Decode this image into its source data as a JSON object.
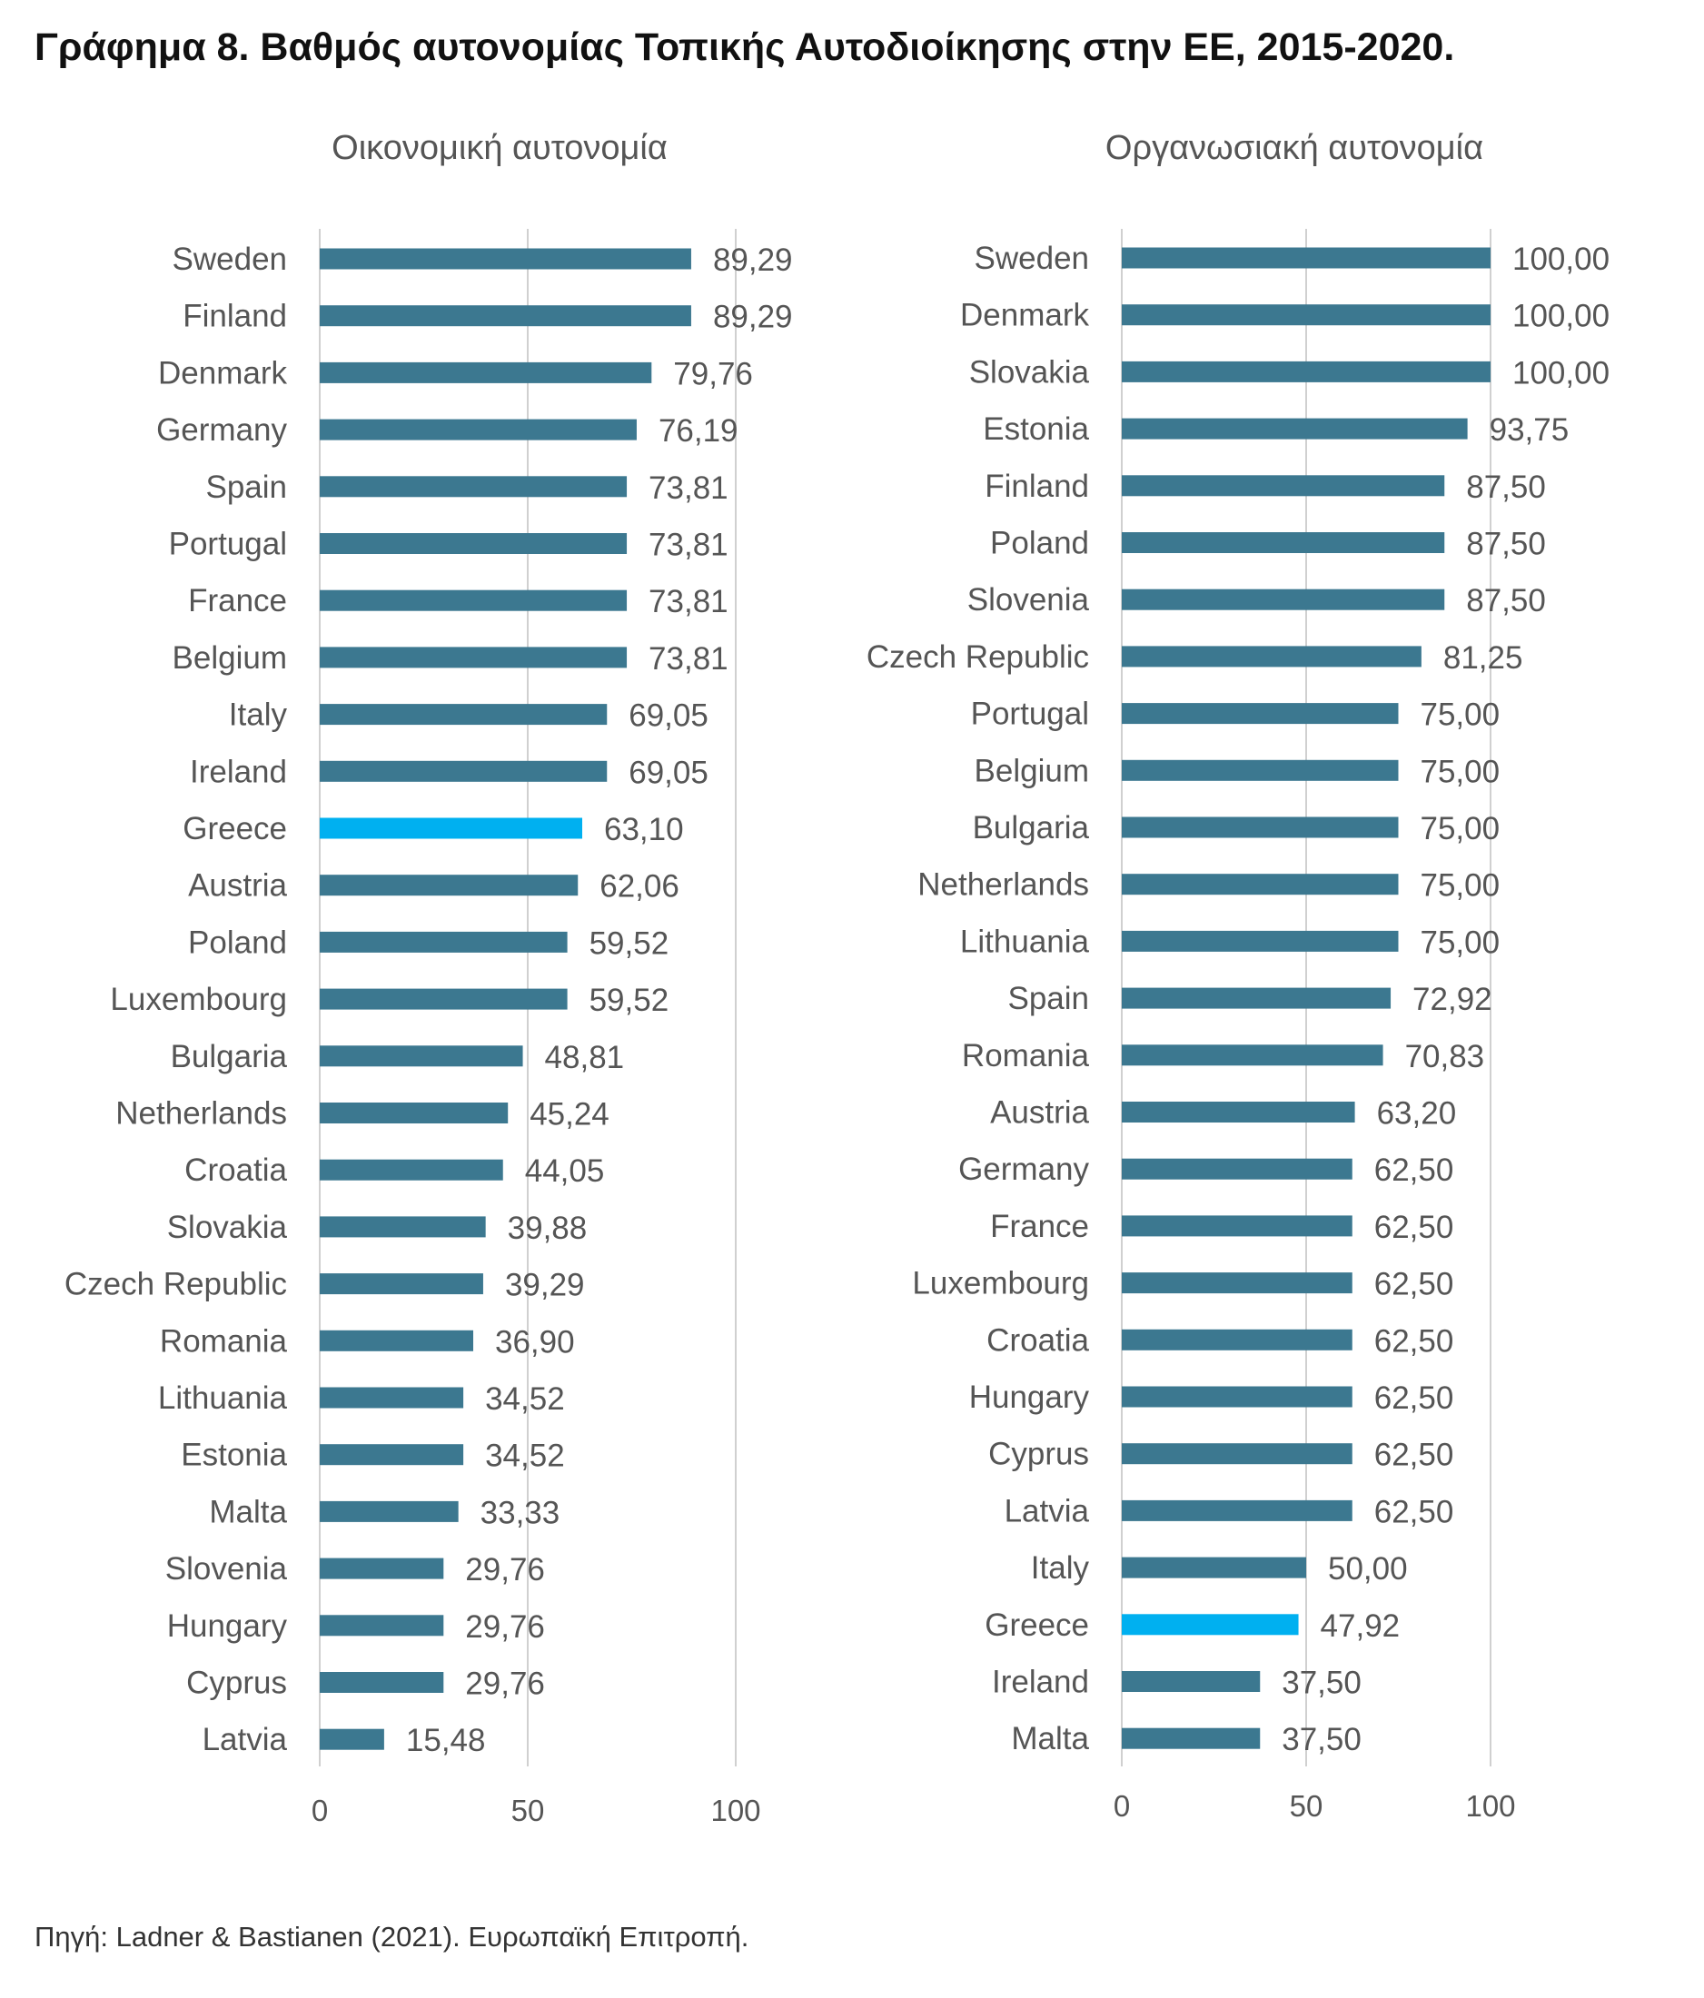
{
  "title": "Γράφημα 8. Βαθμός αυτονομίας Τοπικής Αυτοδιοίκησης στην ΕΕ, 2015-2020.",
  "source": "Πηγή: Ladner & Bastianen (2021). Ευρωπαϊκή Επιτροπή.",
  "colors": {
    "bar": "#3c7890",
    "highlight": "#00b0f0",
    "grid": "#d0d0d0"
  },
  "chart_data": [
    {
      "type": "bar",
      "orientation": "horizontal",
      "title": "Οικονομική αυτονομία",
      "highlight": "Greece",
      "xlim": [
        0,
        100
      ],
      "ticks": [
        0,
        50,
        100
      ],
      "tick_labels": [
        "0",
        "50",
        "100"
      ],
      "categories": [
        "Sweden",
        "Finland",
        "Denmark",
        "Germany",
        "Spain",
        "Portugal",
        "France",
        "Belgium",
        "Italy",
        "Ireland",
        "Greece",
        "Austria",
        "Poland",
        "Luxembourg",
        "Bulgaria",
        "Netherlands",
        "Croatia",
        "Slovakia",
        "Czech Republic",
        "Romania",
        "Lithuania",
        "Estonia",
        "Malta",
        "Slovenia",
        "Hungary",
        "Cyprus",
        "Latvia"
      ],
      "values": [
        89.29,
        89.29,
        79.76,
        76.19,
        73.81,
        73.81,
        73.81,
        73.81,
        69.05,
        69.05,
        63.1,
        62.06,
        59.52,
        59.52,
        48.81,
        45.24,
        44.05,
        39.88,
        39.29,
        36.9,
        34.52,
        34.52,
        33.33,
        29.76,
        29.76,
        29.76,
        15.48
      ],
      "value_labels": [
        "89,29",
        "89,29",
        "79,76",
        "76,19",
        "73,81",
        "73,81",
        "73,81",
        "73,81",
        "69,05",
        "69,05",
        "63,10",
        "62,06",
        "59,52",
        "59,52",
        "48,81",
        "45,24",
        "44,05",
        "39,88",
        "39,29",
        "36,90",
        "34,52",
        "34,52",
        "33,33",
        "29,76",
        "29,76",
        "29,76",
        "15,48"
      ]
    },
    {
      "type": "bar",
      "orientation": "horizontal",
      "title": "Οργανωσιακή αυτονομία",
      "highlight": "Greece",
      "xlim": [
        0,
        100
      ],
      "ticks": [
        0,
        50,
        100
      ],
      "tick_labels": [
        "0",
        "50",
        "100"
      ],
      "categories": [
        "Sweden",
        "Denmark",
        "Slovakia",
        "Estonia",
        "Finland",
        "Poland",
        "Slovenia",
        "Czech Republic",
        "Portugal",
        "Belgium",
        "Bulgaria",
        "Netherlands",
        "Lithuania",
        "Spain",
        "Romania",
        "Austria",
        "Germany",
        "France",
        "Luxembourg",
        "Croatia",
        "Hungary",
        "Cyprus",
        "Latvia",
        "Italy",
        "Greece",
        "Ireland",
        "Malta"
      ],
      "values": [
        100.0,
        100.0,
        100.0,
        93.75,
        87.5,
        87.5,
        87.5,
        81.25,
        75.0,
        75.0,
        75.0,
        75.0,
        75.0,
        72.92,
        70.83,
        63.2,
        62.5,
        62.5,
        62.5,
        62.5,
        62.5,
        62.5,
        62.5,
        50.0,
        47.92,
        37.5,
        37.5
      ],
      "value_labels": [
        "100,00",
        "100,00",
        "100,00",
        "93,75",
        "87,50",
        "87,50",
        "87,50",
        "81,25",
        "75,00",
        "75,00",
        "75,00",
        "75,00",
        "75,00",
        "72,92",
        "70,83",
        "63,20",
        "62,50",
        "62,50",
        "62,50",
        "62,50",
        "62,50",
        "62,50",
        "62,50",
        "50,00",
        "47,92",
        "37,50",
        "37,50"
      ]
    }
  ]
}
